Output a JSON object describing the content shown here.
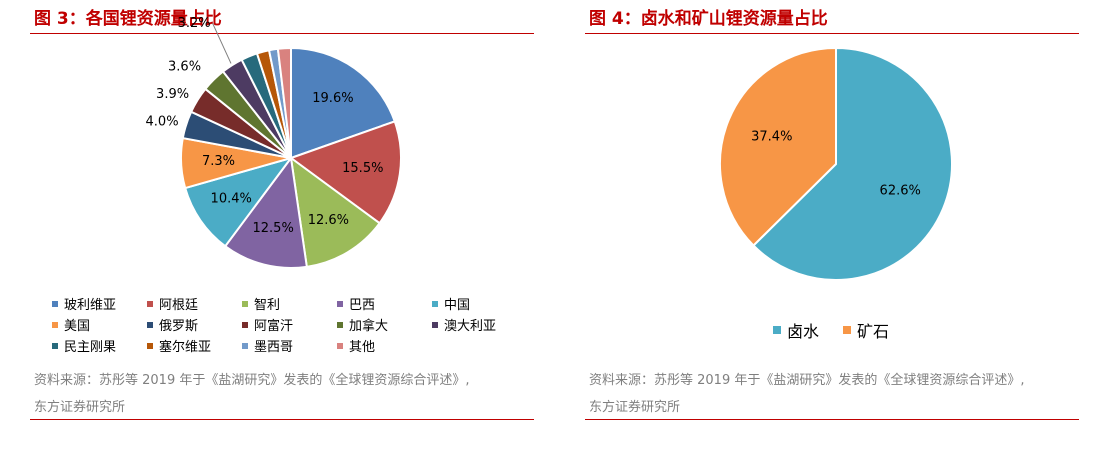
{
  "figures": [
    {
      "title": "图 3：各国锂资源量占比",
      "source_line1": "资料来源：苏彤等 2019 年于《盐湖研究》发表的《全球锂资源综合评述》,",
      "source_line2": "东方证券研究所"
    },
    {
      "title": "图 4：卤水和矿山锂资源量占比",
      "source_line1": "资料来源：苏彤等 2019 年于《盐湖研究》发表的《全球锂资源综合评述》,",
      "source_line2": "东方证券研究所"
    }
  ],
  "chart_data": [
    {
      "type": "pie",
      "title": "",
      "start_angle": "12 o'clock, clockwise",
      "legend_position": "bottom",
      "slices": [
        {
          "label": "玻利维亚",
          "value": 19.6,
          "display": "19.6%",
          "color": "#4f81bd"
        },
        {
          "label": "阿根廷",
          "value": 15.5,
          "display": "15.5%",
          "color": "#c0504d"
        },
        {
          "label": "智利",
          "value": 12.6,
          "display": "12.6%",
          "color": "#9bbb59"
        },
        {
          "label": "巴西",
          "value": 12.5,
          "display": "12.5%",
          "color": "#8064a2"
        },
        {
          "label": "中国",
          "value": 10.4,
          "display": "10.4%",
          "color": "#4bacc6"
        },
        {
          "label": "美国",
          "value": 7.3,
          "display": "7.3%",
          "color": "#f79646"
        },
        {
          "label": "俄罗斯",
          "value": 4.0,
          "display": "4.0%",
          "color": "#2c4d75"
        },
        {
          "label": "阿富汗",
          "value": 3.9,
          "display": "3.9%",
          "color": "#772c2a"
        },
        {
          "label": "加拿大",
          "value": 3.6,
          "display": "3.6%",
          "color": "#5f7530"
        },
        {
          "label": "澳大利亚",
          "value": 3.2,
          "display": "3.2%",
          "color": "#4d3b62"
        },
        {
          "label": "民主刚果",
          "value": 2.4,
          "display": "",
          "color": "#276a7c"
        },
        {
          "label": "塞尔维亚",
          "value": 1.8,
          "display": "",
          "color": "#b65708"
        },
        {
          "label": "墨西哥",
          "value": 1.3,
          "display": "",
          "color": "#729aca"
        },
        {
          "label": "其他",
          "value": 1.9,
          "display": "",
          "color": "#d9827f"
        }
      ]
    },
    {
      "type": "pie",
      "title": "",
      "start_angle": "12 o'clock, clockwise",
      "legend_position": "bottom",
      "slices": [
        {
          "label": "卤水",
          "value": 62.6,
          "display": "62.6%",
          "color": "#4bacc6"
        },
        {
          "label": "矿石",
          "value": 37.4,
          "display": "37.4%",
          "color": "#f79646"
        }
      ]
    }
  ]
}
